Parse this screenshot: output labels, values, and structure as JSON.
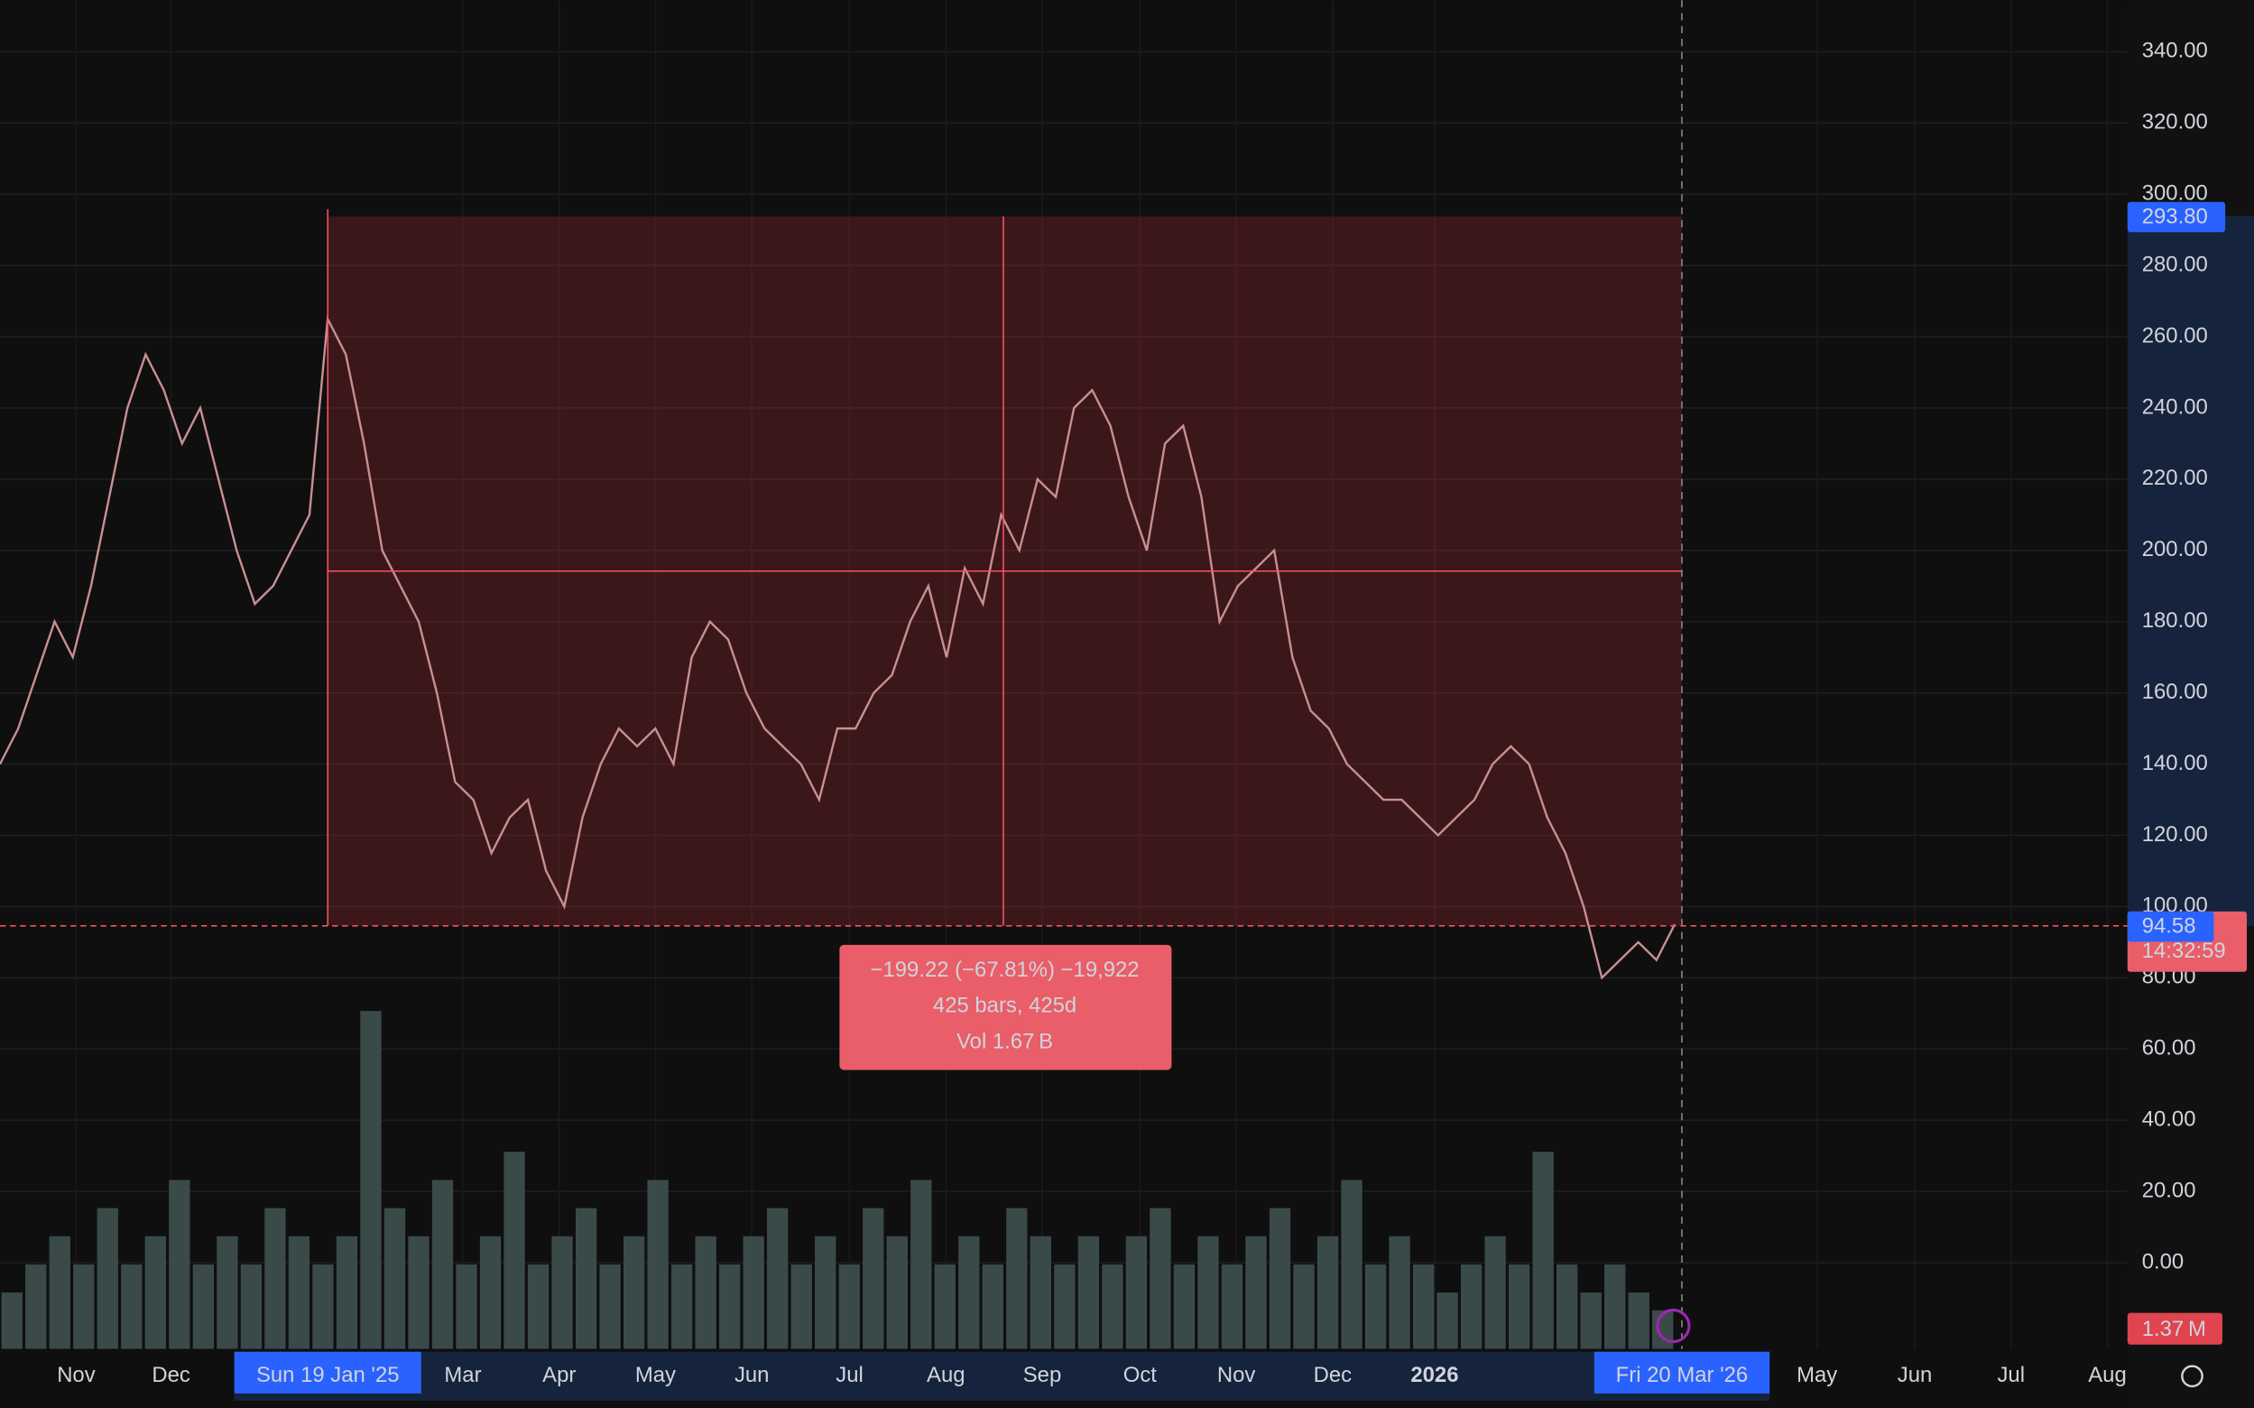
{
  "chart_data": {
    "type": "line",
    "series": [
      {
        "color": "#c98f93",
        "values": [
          140,
          150,
          165,
          180,
          170,
          190,
          215,
          240,
          255,
          245,
          230,
          240,
          220,
          200,
          185,
          190,
          200,
          210,
          265,
          255,
          230,
          200,
          190,
          180,
          160,
          135,
          130,
          115,
          125,
          130,
          110,
          100,
          125,
          140,
          150,
          145,
          150,
          140,
          170,
          180,
          175,
          160,
          150,
          145,
          140,
          130,
          150,
          150,
          160,
          165,
          180,
          190,
          170,
          195,
          185,
          210,
          200,
          220,
          215,
          240,
          245,
          235,
          215,
          200,
          230,
          235,
          215,
          180,
          190,
          195,
          200,
          170,
          155,
          150,
          140,
          135,
          130,
          130,
          125,
          120,
          125,
          130,
          140,
          145,
          140,
          125,
          115,
          100,
          80,
          85,
          90,
          85,
          95
        ]
      }
    ],
    "volume": {
      "color": "#3a4a48",
      "values": [
        2,
        3,
        4,
        3,
        5,
        3,
        4,
        6,
        3,
        4,
        3,
        5,
        4,
        3,
        4,
        12,
        5,
        4,
        6,
        3,
        4,
        7,
        3,
        4,
        5,
        3,
        4,
        6,
        3,
        4,
        3,
        4,
        5,
        3,
        4,
        3,
        5,
        4,
        6,
        3,
        4,
        3,
        5,
        4,
        3,
        4,
        3,
        4,
        5,
        3,
        4,
        3,
        4,
        5,
        3,
        4,
        6,
        3,
        4,
        3,
        2,
        3,
        4,
        3,
        7,
        3,
        2,
        3,
        2,
        1.37
      ]
    },
    "ylim": [
      -24.2,
      354.5
    ],
    "yticks": [
      {
        "value": 0,
        "label": "0.00"
      },
      {
        "value": 20,
        "label": "20.00"
      },
      {
        "value": 40,
        "label": "40.00"
      },
      {
        "value": 60,
        "label": "60.00"
      },
      {
        "value": 80,
        "label": "80.00"
      },
      {
        "value": 100,
        "label": "100.00"
      },
      {
        "value": 120,
        "label": "120.00"
      },
      {
        "value": 140,
        "label": "140.00"
      },
      {
        "value": 160,
        "label": "160.00"
      },
      {
        "value": 180,
        "label": "180.00"
      },
      {
        "value": 200,
        "label": "200.00"
      },
      {
        "value": 220,
        "label": "220.00"
      },
      {
        "value": 240,
        "label": "240.00"
      },
      {
        "value": 260,
        "label": "260.00"
      },
      {
        "value": 280,
        "label": "280.00"
      },
      {
        "value": 300,
        "label": "300.00"
      },
      {
        "value": 320,
        "label": "320.00"
      },
      {
        "value": 340,
        "label": "340.00"
      }
    ],
    "xticks": [
      "Nov",
      "Dec",
      "Mar",
      "Apr",
      "May",
      "Jun",
      "Jul",
      "Aug",
      "Sep",
      "Oct",
      "Nov",
      "Dec",
      "2026",
      "May",
      "Jun",
      "Jul",
      "Aug"
    ],
    "crosshair_dates": [
      "Sun 19 Jan '25",
      "Fri 20 Mar '26"
    ],
    "measure": {
      "top": {
        "value": 293.8,
        "label": "293.80"
      },
      "bottom": {
        "value": 94.58,
        "label": "94.58"
      },
      "lines": [
        "−199.22 (−67.81%) −19,922",
        "425 bars, 425d",
        "Vol 1.67 B"
      ]
    },
    "countdown": "14:32:59",
    "volume_label": "1.37 M",
    "grid": true
  }
}
